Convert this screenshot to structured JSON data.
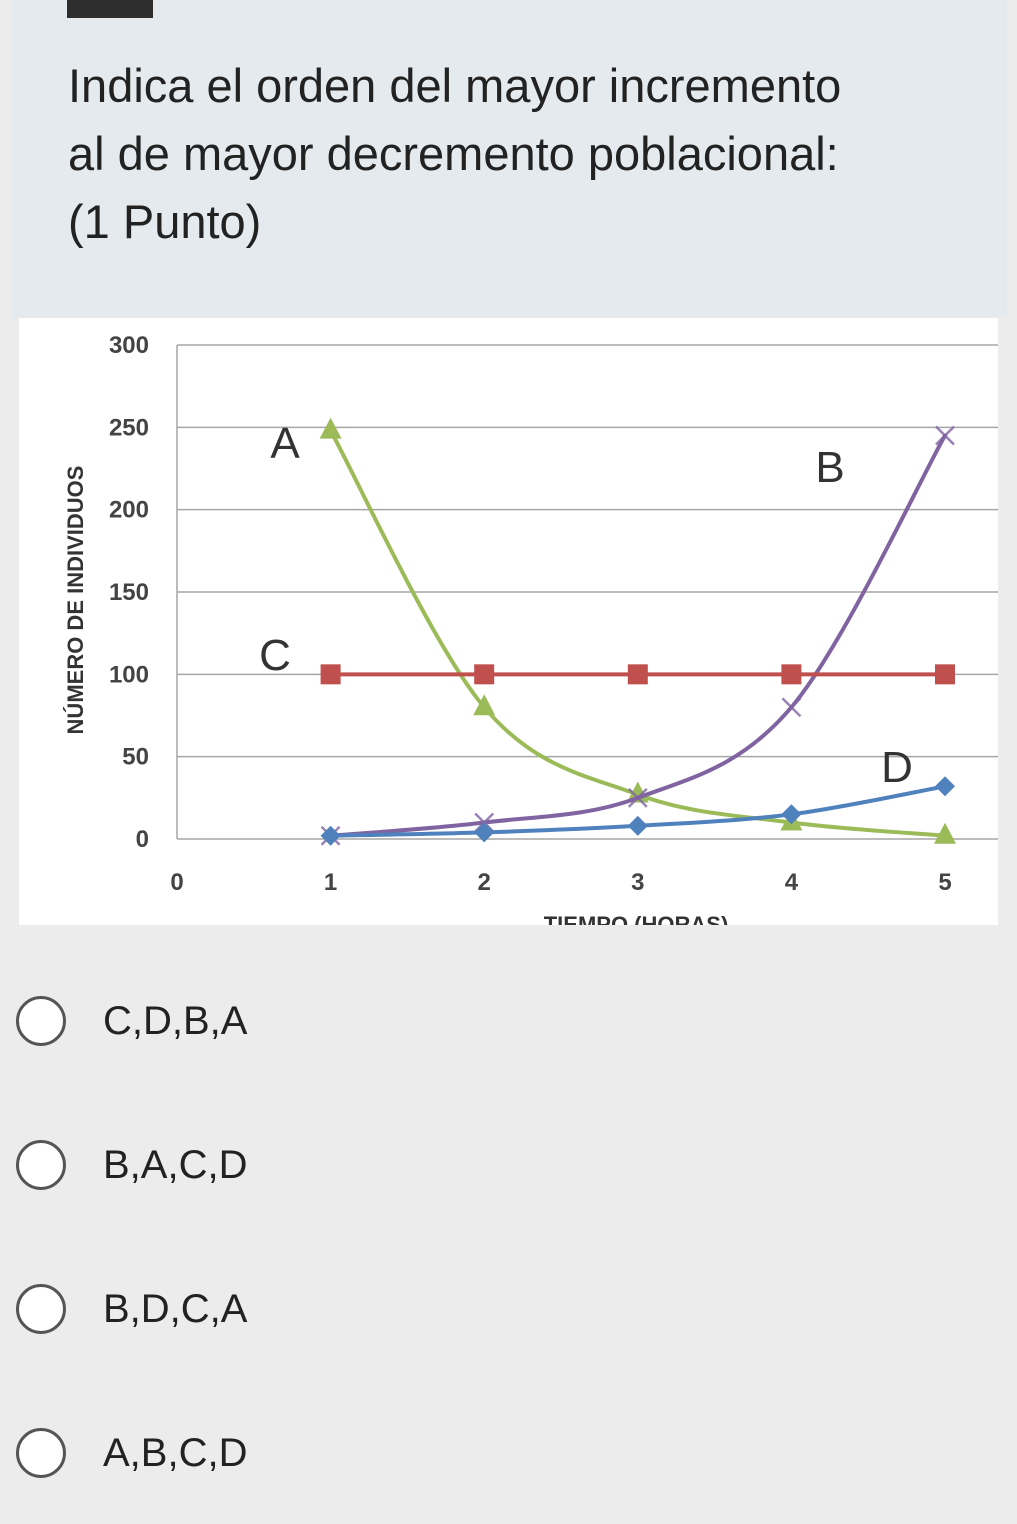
{
  "question": {
    "text": "Indica el orden del mayor incremento\nal de mayor decremento poblacional:\n (1 Punto)"
  },
  "chart_data": {
    "type": "line",
    "ylabel": "NÚMERO DE INDIVIDUOS",
    "xlabel": "TIEMPO (HORAS)",
    "x_ticks": [
      0,
      1,
      2,
      3,
      4,
      5
    ],
    "y_ticks": [
      0,
      50,
      100,
      150,
      200,
      250,
      300
    ],
    "xlim": [
      0,
      5
    ],
    "ylim": [
      0,
      300
    ],
    "grid": true,
    "series": [
      {
        "name": "A",
        "color": "#9bbb59",
        "marker": "triangle",
        "x": [
          1,
          2,
          3,
          4,
          5
        ],
        "y": [
          248,
          80,
          27,
          10,
          2
        ]
      },
      {
        "name": "B",
        "color": "#8064a2",
        "marker": "x",
        "x": [
          1,
          2,
          3,
          4,
          5
        ],
        "y": [
          2,
          10,
          25,
          80,
          245
        ]
      },
      {
        "name": "C",
        "color": "#c0504d",
        "marker": "square",
        "x": [
          1,
          2,
          3,
          4,
          5
        ],
        "y": [
          100,
          100,
          100,
          100,
          100
        ]
      },
      {
        "name": "D",
        "color": "#4f81bd",
        "marker": "diamond",
        "x": [
          1,
          2,
          3,
          4,
          5
        ],
        "y": [
          2,
          4,
          8,
          15,
          32
        ]
      }
    ]
  },
  "options": [
    {
      "label": "C,D,B,A"
    },
    {
      "label": "B,A,C,D"
    },
    {
      "label": "B,D,C,A"
    },
    {
      "label": "A,B,C,D"
    }
  ]
}
